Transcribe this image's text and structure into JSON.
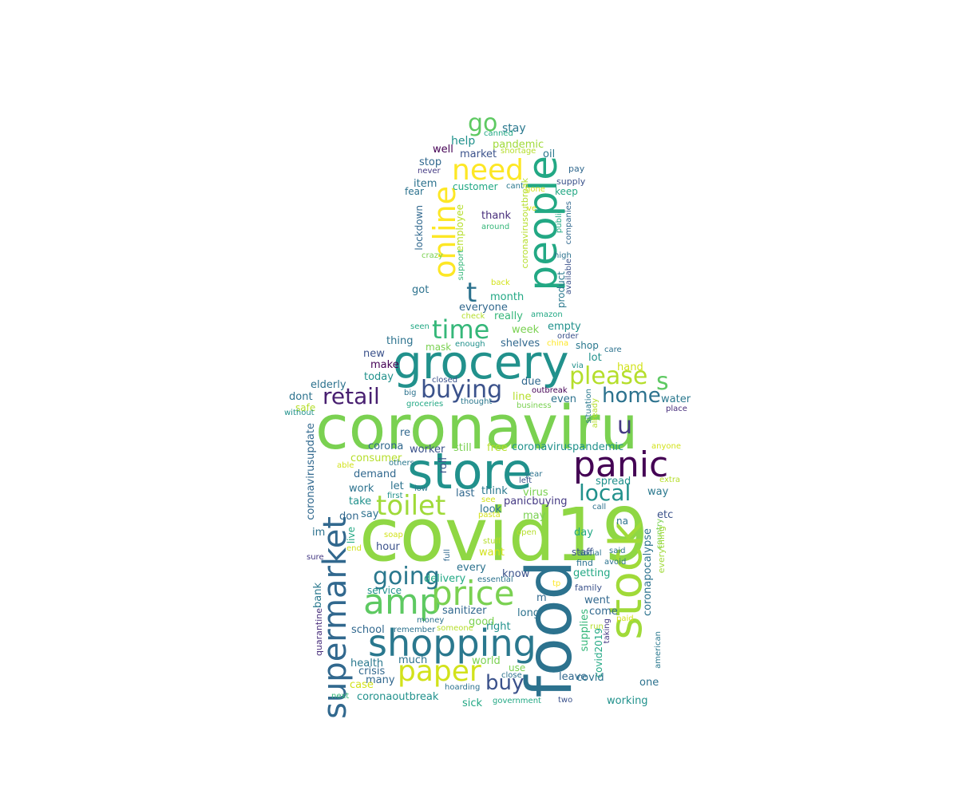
{
  "word_cloud": {
    "palette": "viridis",
    "words": [
      {
        "text": "coronaviru",
        "color": "#7ad151",
        "vertical": false
      },
      {
        "text": "covid19",
        "color": "#8fd744",
        "vertical": false
      },
      {
        "text": "store",
        "color": "#21918c",
        "vertical": false
      },
      {
        "text": "food",
        "color": "#2c728e",
        "vertical": true
      },
      {
        "text": "grocery",
        "color": "#21918c",
        "vertical": false
      },
      {
        "text": "people",
        "color": "#22a884",
        "vertical": true
      },
      {
        "text": "stock",
        "color": "#a0da39",
        "vertical": true
      },
      {
        "text": "supermarket",
        "color": "#31688e",
        "vertical": true
      },
      {
        "text": "panic",
        "color": "#440154",
        "vertical": false
      },
      {
        "text": "shopping",
        "color": "#2a788e",
        "vertical": false
      },
      {
        "text": "amp",
        "color": "#5ec962",
        "vertical": false
      },
      {
        "text": "price",
        "color": "#7ad151",
        "vertical": false
      },
      {
        "text": "toilet",
        "color": "#a0da39",
        "vertical": false
      },
      {
        "text": "online",
        "color": "#fde725",
        "vertical": true
      },
      {
        "text": "paper",
        "color": "#d2e21b",
        "vertical": false
      },
      {
        "text": "need",
        "color": "#fde725",
        "vertical": false
      },
      {
        "text": "time",
        "color": "#35b779",
        "vertical": false
      },
      {
        "text": "buying",
        "color": "#3b528b",
        "vertical": false
      },
      {
        "text": "retail",
        "color": "#481f70",
        "vertical": false
      },
      {
        "text": "please",
        "color": "#b5de2b",
        "vertical": false
      },
      {
        "text": "home",
        "color": "#2c728e",
        "vertical": false
      },
      {
        "text": "going",
        "color": "#2a788e",
        "vertical": false
      },
      {
        "text": "local",
        "color": "#21918c",
        "vertical": false
      },
      {
        "text": "buy",
        "color": "#3b528b",
        "vertical": false
      },
      {
        "text": "go",
        "color": "#5ec962",
        "vertical": false
      },
      {
        "text": "t",
        "color": "#2c728e",
        "vertical": false
      },
      {
        "text": "u",
        "color": "#443983",
        "vertical": false
      },
      {
        "text": "s",
        "color": "#5ec962",
        "vertical": false
      },
      {
        "text": "stay",
        "color": "#2a788e",
        "vertical": false
      },
      {
        "text": "help",
        "color": "#21918c",
        "vertical": false
      },
      {
        "text": "pandemic",
        "color": "#a0da39",
        "vertical": false
      },
      {
        "text": "well",
        "color": "#440154",
        "vertical": false
      },
      {
        "text": "market",
        "color": "#3b528b",
        "vertical": false
      },
      {
        "text": "oil",
        "color": "#2a788e",
        "vertical": false
      },
      {
        "text": "canned",
        "color": "#22a884",
        "vertical": false
      },
      {
        "text": "shortage",
        "color": "#b5de2b",
        "vertical": false
      },
      {
        "text": "stop",
        "color": "#31688e",
        "vertical": false
      },
      {
        "text": "never",
        "color": "#443983",
        "vertical": false
      },
      {
        "text": "pay",
        "color": "#31688e",
        "vertical": false
      },
      {
        "text": "supply",
        "color": "#3b528b",
        "vertical": false
      },
      {
        "text": "item",
        "color": "#2c728e",
        "vertical": false
      },
      {
        "text": "customer",
        "color": "#22a884",
        "vertical": false
      },
      {
        "text": "cant",
        "color": "#2a788e",
        "vertical": false
      },
      {
        "text": "gone",
        "color": "#d2e21b",
        "vertical": false
      },
      {
        "text": "keep",
        "color": "#22a884",
        "vertical": false
      },
      {
        "text": "fear",
        "color": "#2c728e",
        "vertical": false
      },
      {
        "text": "lockdown",
        "color": "#31688e",
        "vertical": true
      },
      {
        "text": "employee",
        "color": "#b5de2b",
        "vertical": true
      },
      {
        "text": "thank",
        "color": "#472d7b",
        "vertical": false
      },
      {
        "text": "around",
        "color": "#35b779",
        "vertical": false
      },
      {
        "text": "coronavirusoutbreak",
        "color": "#b5de2b",
        "vertical": true
      },
      {
        "text": "ve",
        "color": "#d2e21b",
        "vertical": false
      },
      {
        "text": "public",
        "color": "#22a884",
        "vertical": true
      },
      {
        "text": "companies",
        "color": "#31688e",
        "vertical": true
      },
      {
        "text": "crazy",
        "color": "#7ad151",
        "vertical": false
      },
      {
        "text": "support",
        "color": "#35b779",
        "vertical": true
      },
      {
        "text": "high",
        "color": "#2c728e",
        "vertical": false
      },
      {
        "text": "available",
        "color": "#3b528b",
        "vertical": true
      },
      {
        "text": "product",
        "color": "#2a788e",
        "vertical": true
      },
      {
        "text": "got",
        "color": "#2c728e",
        "vertical": false
      },
      {
        "text": "back",
        "color": "#d2e21b",
        "vertical": false
      },
      {
        "text": "month",
        "color": "#22a884",
        "vertical": false
      },
      {
        "text": "everyone",
        "color": "#31688e",
        "vertical": false
      },
      {
        "text": "check",
        "color": "#b5de2b",
        "vertical": false
      },
      {
        "text": "really",
        "color": "#35b779",
        "vertical": false
      },
      {
        "text": "amazon",
        "color": "#22a884",
        "vertical": false
      },
      {
        "text": "seen",
        "color": "#22a884",
        "vertical": false
      },
      {
        "text": "week",
        "color": "#7ad151",
        "vertical": false
      },
      {
        "text": "empty",
        "color": "#21918c",
        "vertical": false
      },
      {
        "text": "order",
        "color": "#3b528b",
        "vertical": false
      },
      {
        "text": "thing",
        "color": "#2c728e",
        "vertical": false
      },
      {
        "text": "mask",
        "color": "#7ad151",
        "vertical": false
      },
      {
        "text": "enough",
        "color": "#21918c",
        "vertical": false
      },
      {
        "text": "shelves",
        "color": "#31688e",
        "vertical": false
      },
      {
        "text": "china",
        "color": "#fde725",
        "vertical": false
      },
      {
        "text": "shop",
        "color": "#2a788e",
        "vertical": false
      },
      {
        "text": "care",
        "color": "#2c728e",
        "vertical": false
      },
      {
        "text": "lot",
        "color": "#21918c",
        "vertical": false
      },
      {
        "text": "new",
        "color": "#3b528b",
        "vertical": false
      },
      {
        "text": "make",
        "color": "#440154",
        "vertical": false
      },
      {
        "text": "closed",
        "color": "#3b528b",
        "vertical": false
      },
      {
        "text": "due",
        "color": "#31688e",
        "vertical": false
      },
      {
        "text": "via",
        "color": "#21918c",
        "vertical": false
      },
      {
        "text": "hand",
        "color": "#d2e21b",
        "vertical": false
      },
      {
        "text": "today",
        "color": "#21918c",
        "vertical": false
      },
      {
        "text": "outbreak",
        "color": "#440154",
        "vertical": false
      },
      {
        "text": "elderly",
        "color": "#2c728e",
        "vertical": false
      },
      {
        "text": "big",
        "color": "#2c728e",
        "vertical": false
      },
      {
        "text": "even",
        "color": "#2c728e",
        "vertical": false
      },
      {
        "text": "dont",
        "color": "#2c728e",
        "vertical": false
      },
      {
        "text": "line",
        "color": "#b5de2b",
        "vertical": false
      },
      {
        "text": "water",
        "color": "#2a788e",
        "vertical": false
      },
      {
        "text": "safe",
        "color": "#b5de2b",
        "vertical": false
      },
      {
        "text": "groceries",
        "color": "#22a884",
        "vertical": false
      },
      {
        "text": "thought",
        "color": "#2a788e",
        "vertical": false
      },
      {
        "text": "business",
        "color": "#7ad151",
        "vertical": false
      },
      {
        "text": "situation",
        "color": "#2a788e",
        "vertical": true
      },
      {
        "text": "already",
        "color": "#b5de2b",
        "vertical": true
      },
      {
        "text": "place",
        "color": "#472d7b",
        "vertical": false
      },
      {
        "text": "without",
        "color": "#21918c",
        "vertical": false
      },
      {
        "text": "re",
        "color": "#31688e",
        "vertical": false
      },
      {
        "text": "coronavirusupdate",
        "color": "#31688e",
        "vertical": true
      },
      {
        "text": "corona",
        "color": "#31688e",
        "vertical": false
      },
      {
        "text": "worker",
        "color": "#3b528b",
        "vertical": false
      },
      {
        "text": "still",
        "color": "#7ad151",
        "vertical": false
      },
      {
        "text": "free",
        "color": "#b5de2b",
        "vertical": false
      },
      {
        "text": "coronaviruspandemic",
        "color": "#21918c",
        "vertical": false
      },
      {
        "text": "anyone",
        "color": "#d2e21b",
        "vertical": false
      },
      {
        "text": "consumer",
        "color": "#b5de2b",
        "vertical": false
      },
      {
        "text": "roll",
        "color": "#3b528b",
        "vertical": true
      },
      {
        "text": "others",
        "color": "#2a788e",
        "vertical": false
      },
      {
        "text": "able",
        "color": "#d2e21b",
        "vertical": false
      },
      {
        "text": "year",
        "color": "#2c728e",
        "vertical": false
      },
      {
        "text": "left",
        "color": "#3b528b",
        "vertical": false
      },
      {
        "text": "extra",
        "color": "#b5de2b",
        "vertical": false
      },
      {
        "text": "demand",
        "color": "#31688e",
        "vertical": false
      },
      {
        "text": "spread",
        "color": "#21918c",
        "vertical": false
      },
      {
        "text": "work",
        "color": "#2c728e",
        "vertical": false
      },
      {
        "text": "let",
        "color": "#2c728e",
        "vertical": false
      },
      {
        "text": "low",
        "color": "#2a788e",
        "vertical": false
      },
      {
        "text": "first",
        "color": "#21918c",
        "vertical": false
      },
      {
        "text": "last",
        "color": "#31688e",
        "vertical": false
      },
      {
        "text": "think",
        "color": "#2a788e",
        "vertical": false
      },
      {
        "text": "virus",
        "color": "#7ad151",
        "vertical": false
      },
      {
        "text": "way",
        "color": "#2a788e",
        "vertical": false
      },
      {
        "text": "take",
        "color": "#21918c",
        "vertical": false
      },
      {
        "text": "see",
        "color": "#d2e21b",
        "vertical": false
      },
      {
        "text": "panicbuying",
        "color": "#443983",
        "vertical": false
      },
      {
        "text": "call",
        "color": "#2c728e",
        "vertical": false
      },
      {
        "text": "look",
        "color": "#2c728e",
        "vertical": false
      },
      {
        "text": "don",
        "color": "#31688e",
        "vertical": false
      },
      {
        "text": "say",
        "color": "#2c728e",
        "vertical": false
      },
      {
        "text": "pasta",
        "color": "#d2e21b",
        "vertical": false
      },
      {
        "text": "may",
        "color": "#7ad151",
        "vertical": false
      },
      {
        "text": "na",
        "color": "#2c728e",
        "vertical": false
      },
      {
        "text": "etc",
        "color": "#3b528b",
        "vertical": false
      },
      {
        "text": "country",
        "color": "#7ad151",
        "vertical": true
      },
      {
        "text": "im",
        "color": "#2c728e",
        "vertical": false
      },
      {
        "text": "live",
        "color": "#22a884",
        "vertical": true
      },
      {
        "text": "soap",
        "color": "#d2e21b",
        "vertical": false
      },
      {
        "text": "open",
        "color": "#b5de2b",
        "vertical": false
      },
      {
        "text": "day",
        "color": "#22a884",
        "vertical": false
      },
      {
        "text": "end",
        "color": "#d2e21b",
        "vertical": false
      },
      {
        "text": "hour",
        "color": "#3b528b",
        "vertical": false
      },
      {
        "text": "stuff",
        "color": "#b5de2b",
        "vertical": false
      },
      {
        "text": "want",
        "color": "#d2e21b",
        "vertical": false
      },
      {
        "text": "staff",
        "color": "#3b528b",
        "vertical": false
      },
      {
        "text": "said",
        "color": "#2c728e",
        "vertical": false
      },
      {
        "text": "sure",
        "color": "#443983",
        "vertical": false
      },
      {
        "text": "full",
        "color": "#31688e",
        "vertical": true
      },
      {
        "text": "find",
        "color": "#2c728e",
        "vertical": false
      },
      {
        "text": "avoid",
        "color": "#2c728e",
        "vertical": false
      },
      {
        "text": "every",
        "color": "#2c728e",
        "vertical": false
      },
      {
        "text": "social",
        "color": "#2c728e",
        "vertical": false
      },
      {
        "text": "delivery",
        "color": "#22a884",
        "vertical": false
      },
      {
        "text": "know",
        "color": "#3b528b",
        "vertical": false
      },
      {
        "text": "getting",
        "color": "#22a884",
        "vertical": false
      },
      {
        "text": "essential",
        "color": "#2c728e",
        "vertical": false
      },
      {
        "text": "family",
        "color": "#3b528b",
        "vertical": false
      },
      {
        "text": "tp",
        "color": "#fde725",
        "vertical": false
      },
      {
        "text": "service",
        "color": "#21918c",
        "vertical": false
      },
      {
        "text": "everything",
        "color": "#a0da39",
        "vertical": true
      },
      {
        "text": "m",
        "color": "#31688e",
        "vertical": false
      },
      {
        "text": "went",
        "color": "#31688e",
        "vertical": false
      },
      {
        "text": "coronapocalypse",
        "color": "#2c728e",
        "vertical": true
      },
      {
        "text": "bank",
        "color": "#2a788e",
        "vertical": true
      },
      {
        "text": "sanitizer",
        "color": "#31688e",
        "vertical": false
      },
      {
        "text": "come",
        "color": "#31688e",
        "vertical": false
      },
      {
        "text": "long",
        "color": "#2c728e",
        "vertical": false
      },
      {
        "text": "paid",
        "color": "#d2e21b",
        "vertical": false
      },
      {
        "text": "money",
        "color": "#2c728e",
        "vertical": false
      },
      {
        "text": "good",
        "color": "#7ad151",
        "vertical": false
      },
      {
        "text": "run",
        "color": "#b5de2b",
        "vertical": false
      },
      {
        "text": "quarantine",
        "color": "#472d7b",
        "vertical": true
      },
      {
        "text": "remember",
        "color": "#2c728e",
        "vertical": false
      },
      {
        "text": "someone",
        "color": "#b5de2b",
        "vertical": false
      },
      {
        "text": "school",
        "color": "#31688e",
        "vertical": false
      },
      {
        "text": "right",
        "color": "#21918c",
        "vertical": false
      },
      {
        "text": "supplies",
        "color": "#35b779",
        "vertical": true
      },
      {
        "text": "taking",
        "color": "#443983",
        "vertical": true
      },
      {
        "text": "american",
        "color": "#2a788e",
        "vertical": true
      },
      {
        "text": "health",
        "color": "#2a788e",
        "vertical": false
      },
      {
        "text": "much",
        "color": "#2c728e",
        "vertical": false
      },
      {
        "text": "world",
        "color": "#7ad151",
        "vertical": false
      },
      {
        "text": "covid2019",
        "color": "#22a884",
        "vertical": true
      },
      {
        "text": "crisis",
        "color": "#31688e",
        "vertical": false
      },
      {
        "text": "use",
        "color": "#7ad151",
        "vertical": false
      },
      {
        "text": "close",
        "color": "#2c728e",
        "vertical": false
      },
      {
        "text": "leave",
        "color": "#31688e",
        "vertical": false
      },
      {
        "text": "one",
        "color": "#2c728e",
        "vertical": false
      },
      {
        "text": "many",
        "color": "#31688e",
        "vertical": false
      },
      {
        "text": "case",
        "color": "#d2e21b",
        "vertical": false
      },
      {
        "text": "hoarding",
        "color": "#2c728e",
        "vertical": false
      },
      {
        "text": "covid",
        "color": "#2c728e",
        "vertical": false
      },
      {
        "text": "working",
        "color": "#21918c",
        "vertical": false
      },
      {
        "text": "next",
        "color": "#35b779",
        "vertical": false
      },
      {
        "text": "coronaoutbreak",
        "color": "#21918c",
        "vertical": false
      },
      {
        "text": "sick",
        "color": "#22a884",
        "vertical": false
      },
      {
        "text": "government",
        "color": "#22a884",
        "vertical": false
      },
      {
        "text": "two",
        "color": "#3b528b",
        "vertical": false
      }
    ]
  }
}
